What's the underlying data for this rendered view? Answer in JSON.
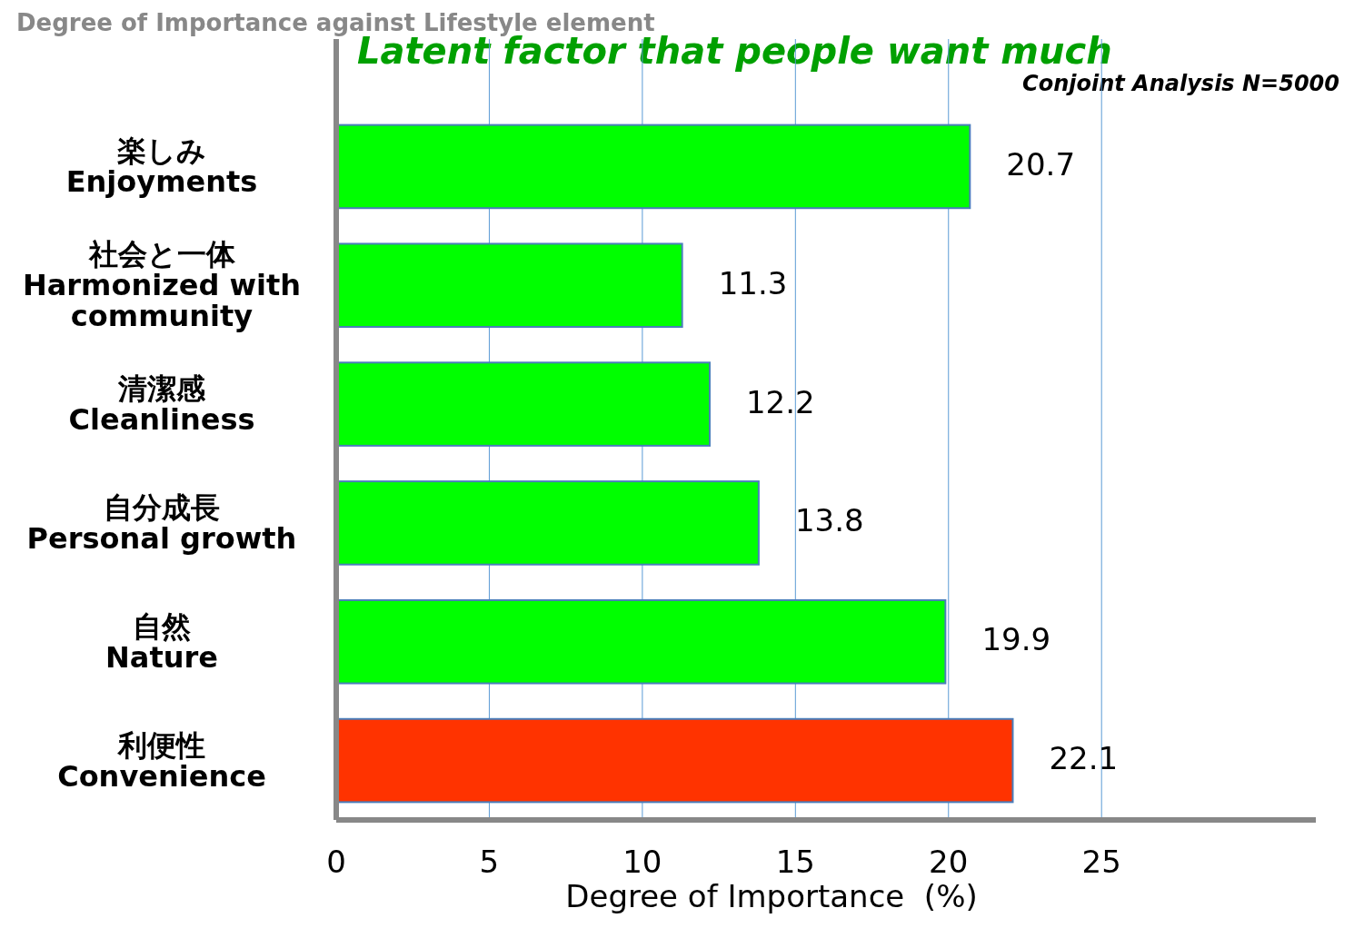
{
  "chart_data": {
    "type": "bar",
    "orientation": "horizontal",
    "title": "Degree of Importance against Lifestyle element",
    "subtitle": "Latent factor that people want much",
    "xlabel": "Degree of Importance  (%)",
    "annotations": [
      "Conjoint Analysis N=5000"
    ],
    "categories": [
      "楽しみ\nEnjoyments",
      "社会と一体\nHarmonized with\ncommunity",
      "清潔感\nCleanliness",
      "自分成長\nPersonal growth",
      "自然\nNature",
      "利便性\nConvenience"
    ],
    "values": [
      20.7,
      11.3,
      12.2,
      13.8,
      19.9,
      22.1
    ],
    "colors": [
      "#00ff00",
      "#00ff00",
      "#00ff00",
      "#00ff00",
      "#00ff00",
      "#ff3300"
    ],
    "data_labels": true,
    "xlim": [
      0,
      32
    ],
    "xticks": [
      0,
      5,
      10,
      15,
      20,
      25
    ],
    "grid": "x"
  }
}
